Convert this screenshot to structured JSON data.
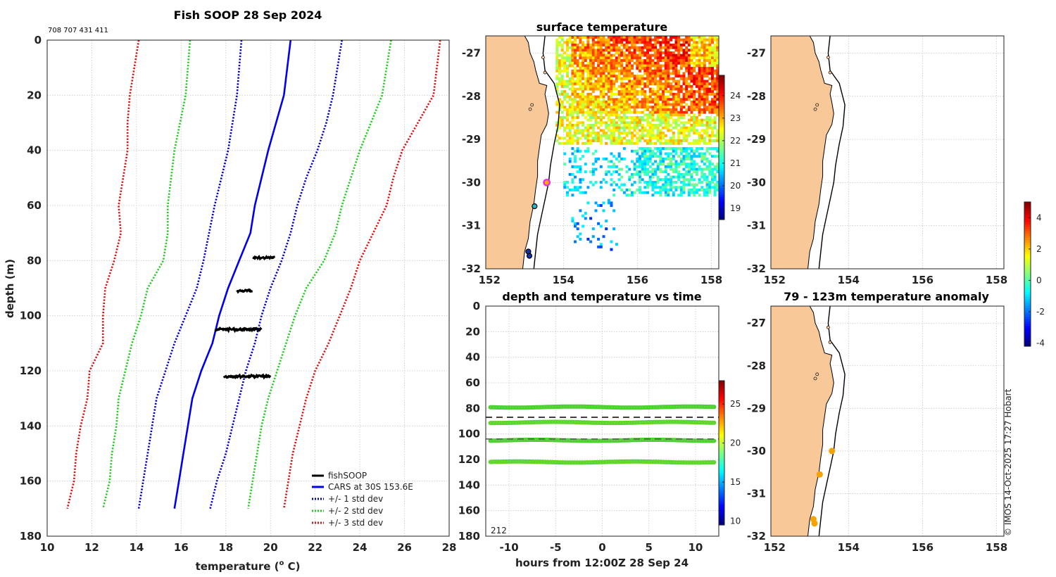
{
  "colors": {
    "land": "#f8c898",
    "cars": "#0000ee",
    "sd1": "#0000cc",
    "sd2": "#22cc22",
    "sd3": "#dd1111",
    "magenta": "#ee22ee"
  },
  "chart_data": [
    {
      "type": "line",
      "id": "profile",
      "title": "Fish SOOP 28 Sep 2024",
      "subtitle": "708 707 431 411",
      "xlabel": "temperature (",
      "xlabel_sup": "o",
      "xlabel_end": " C)",
      "ylabel": "depth (m)",
      "xlim": [
        10,
        28
      ],
      "ylim": [
        180,
        0
      ],
      "xticks": [
        10,
        12,
        14,
        16,
        18,
        20,
        22,
        24,
        26,
        28
      ],
      "yticks": [
        0,
        20,
        40,
        60,
        80,
        100,
        120,
        140,
        160,
        180
      ],
      "legend": [
        "fishSOOP",
        "CARS at 30S 153.6E",
        "+/- 1 std dev",
        "+/- 2 std dev",
        "+/- 3 std dev"
      ],
      "series": [
        {
          "name": "CARS at 30S 153.6E",
          "depth": [
            0,
            20,
            40,
            60,
            70,
            80,
            90,
            100,
            110,
            120,
            130,
            140,
            150,
            160,
            170
          ],
          "temp": [
            20.9,
            20.6,
            19.9,
            19.3,
            19.1,
            18.6,
            18.1,
            17.7,
            17.4,
            16.9,
            16.5,
            16.3,
            16.1,
            15.9,
            15.7
          ]
        },
        {
          "name": "+1 std dev",
          "depth": [
            0,
            20,
            30,
            40,
            50,
            60,
            70,
            80,
            90,
            100,
            110,
            120,
            130,
            140,
            150,
            160,
            170
          ],
          "temp": [
            23.2,
            22.8,
            22.5,
            22.1,
            21.6,
            21.2,
            20.9,
            20.5,
            20.0,
            19.6,
            19.3,
            18.9,
            18.6,
            18.3,
            18.0,
            17.6,
            17.3
          ]
        },
        {
          "name": "-1 std dev",
          "depth": [
            0,
            20,
            40,
            60,
            80,
            90,
            100,
            110,
            120,
            130,
            140,
            150,
            160,
            170
          ],
          "temp": [
            18.7,
            18.5,
            18.1,
            17.5,
            17.0,
            16.7,
            16.2,
            15.7,
            15.3,
            14.9,
            14.7,
            14.5,
            14.3,
            14.1
          ]
        },
        {
          "name": "+2 std dev",
          "depth": [
            0,
            20,
            40,
            60,
            70,
            80,
            90,
            100,
            110,
            120,
            130,
            140,
            150,
            160,
            170
          ],
          "temp": [
            25.4,
            25.0,
            24.0,
            23.2,
            22.9,
            22.4,
            21.6,
            21.1,
            20.7,
            20.3,
            19.9,
            19.6,
            19.4,
            19.2,
            19.0
          ]
        },
        {
          "name": "-2 std dev",
          "depth": [
            0,
            20,
            40,
            60,
            70,
            80,
            90,
            100,
            110,
            120,
            130,
            140,
            150,
            160,
            170
          ],
          "temp": [
            16.4,
            16.2,
            15.7,
            15.4,
            15.4,
            15.2,
            14.5,
            14.2,
            13.8,
            13.5,
            13.2,
            13.1,
            12.9,
            12.8,
            12.5
          ]
        },
        {
          "name": "+3 std dev",
          "depth": [
            0,
            20,
            40,
            50,
            60,
            70,
            80,
            90,
            100,
            110,
            120,
            130,
            140,
            150,
            160,
            170
          ],
          "temp": [
            27.6,
            27.3,
            25.9,
            25.5,
            25.2,
            24.6,
            24.0,
            23.6,
            23.1,
            22.6,
            22.0,
            21.6,
            21.3,
            21.0,
            20.8,
            20.6
          ]
        },
        {
          "name": "-3 std dev",
          "depth": [
            0,
            20,
            30,
            40,
            50,
            60,
            70,
            80,
            90,
            100,
            110,
            120,
            130,
            140,
            150,
            160,
            170
          ],
          "temp": [
            14.1,
            13.7,
            13.6,
            13.6,
            13.4,
            13.2,
            13.3,
            13.0,
            12.6,
            12.5,
            12.5,
            11.9,
            11.8,
            11.5,
            11.3,
            11.2,
            10.9
          ]
        }
      ],
      "fishsoop": [
        {
          "depth": 79,
          "tmin": 19.2,
          "tmax": 20.2
        },
        {
          "depth": 91,
          "tmin": 18.5,
          "tmax": 19.2
        },
        {
          "depth": 105,
          "tmin": 17.5,
          "tmax": 19.6
        },
        {
          "depth": 122,
          "tmin": 17.9,
          "tmax": 20.0
        }
      ]
    },
    {
      "type": "heatmap",
      "id": "sst",
      "title": "surface temperature",
      "xlim": [
        151.9,
        158.2
      ],
      "ylim": [
        -32,
        -26.6
      ],
      "xticks": [
        152,
        154,
        156,
        158
      ],
      "yticks": [
        -27,
        -28,
        -29,
        -30,
        -31,
        -32
      ],
      "colorbar_ticks": [
        19,
        20,
        21,
        22,
        23,
        24
      ],
      "colorbar_range": [
        18.5,
        24.9
      ]
    },
    {
      "type": "scatter",
      "id": "timeseries",
      "title": "depth and temperature vs time",
      "xlabel": "hours from 12:00Z 28 Sep 24",
      "xlim": [
        -12.5,
        12.5
      ],
      "ylim": [
        180,
        0
      ],
      "xticks": [
        -10,
        -5,
        0,
        5,
        10
      ],
      "yticks": [
        0,
        20,
        40,
        60,
        80,
        100,
        120,
        140,
        160,
        180
      ],
      "depth_lines": [
        79,
        91,
        105,
        122
      ],
      "dashed_lines": [
        87,
        104
      ],
      "colorbar_ticks": [
        10,
        15,
        20,
        25
      ],
      "colorbar_range": [
        9.5,
        28
      ],
      "note": "212"
    },
    {
      "type": "map",
      "id": "map_tr",
      "xlim": [
        151.9,
        158.2
      ],
      "ylim": [
        -32,
        -26.6
      ],
      "xticks": [
        152,
        154,
        156,
        158
      ],
      "yticks": [
        -27,
        -28,
        -29,
        -30,
        -31,
        -32
      ]
    },
    {
      "type": "scatter",
      "id": "anomaly",
      "title": "79 - 123m temperature anomaly",
      "xlim": [
        151.9,
        158.2
      ],
      "ylim": [
        -32,
        -26.6
      ],
      "xticks": [
        152,
        154,
        156,
        158
      ],
      "yticks": [
        -27,
        -28,
        -29,
        -30,
        -31,
        -32
      ],
      "colorbar_ticks": [
        -4,
        -2,
        0,
        2,
        4
      ],
      "colorbar_range": [
        -4.2,
        5.0
      ],
      "points": [
        {
          "lon": 153.55,
          "lat": -30.0
        },
        {
          "lon": 153.22,
          "lat": -30.55
        },
        {
          "lon": 153.05,
          "lat": -31.6
        },
        {
          "lon": 153.08,
          "lat": -31.7
        }
      ]
    }
  ],
  "credit": "© IMOS 14-Oct-2025 17:27 Hobart"
}
